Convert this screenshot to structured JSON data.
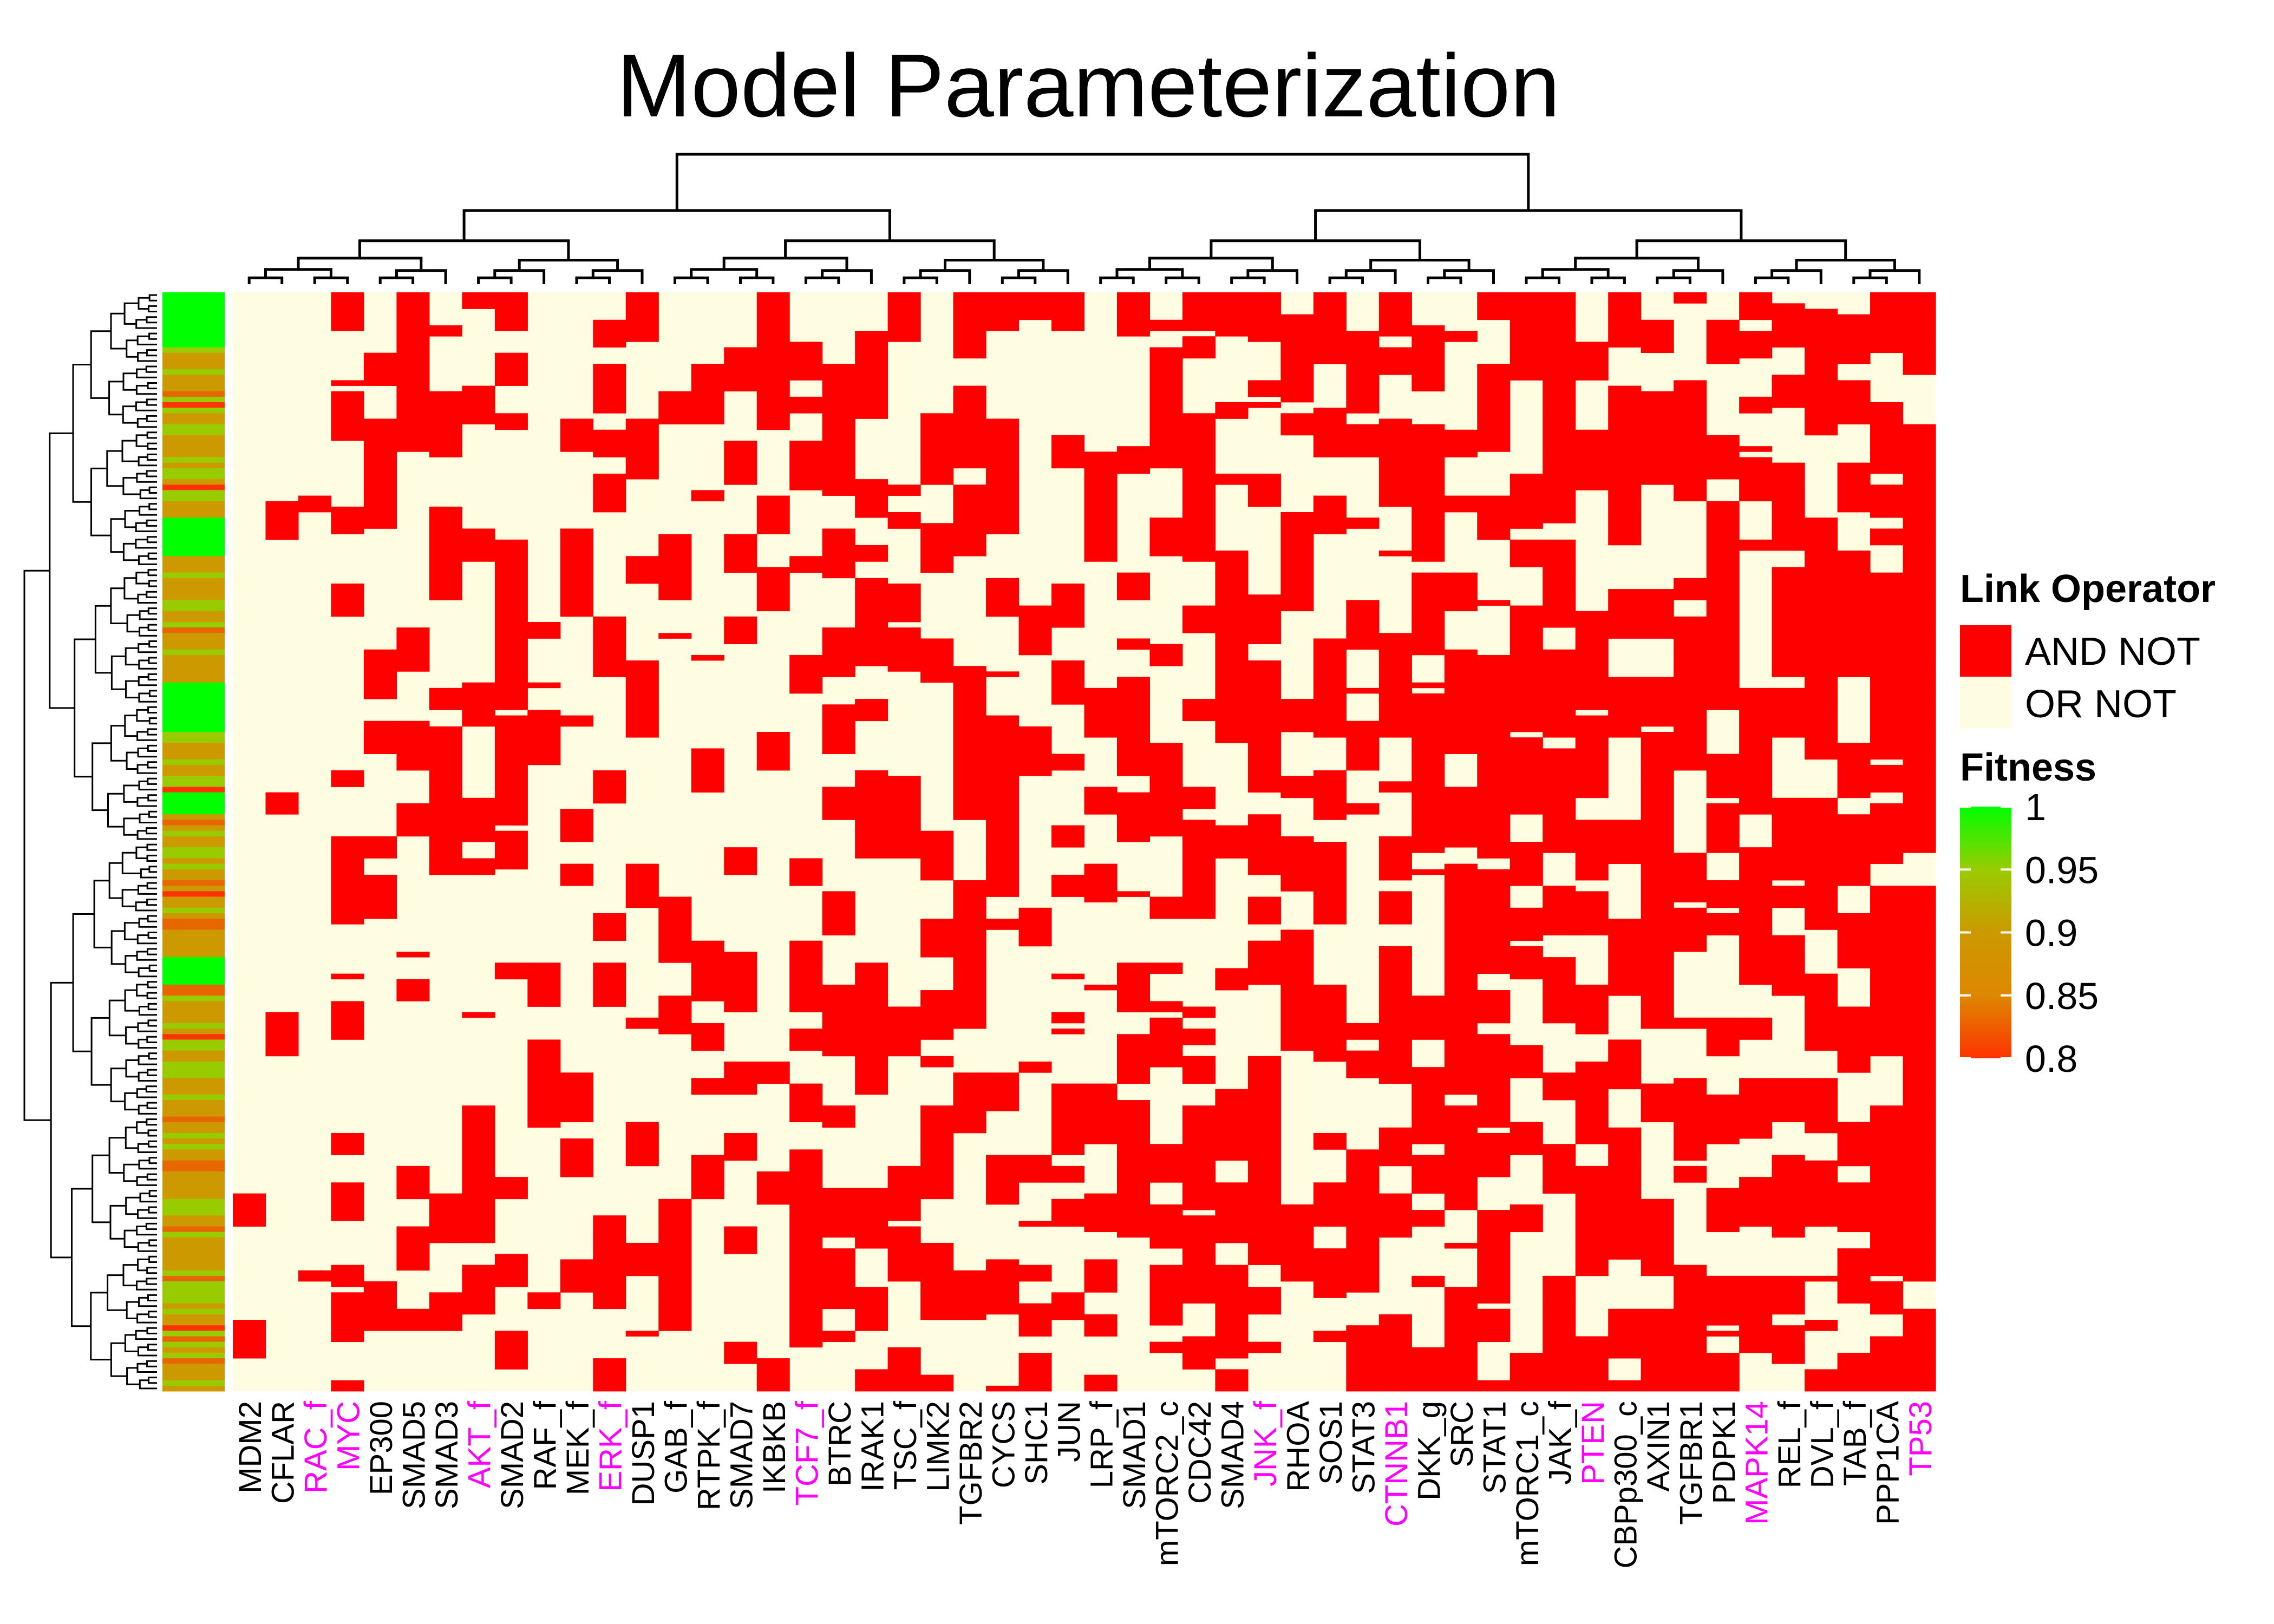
{
  "chart_data": {
    "type": "heatmap",
    "title": "Model Parameterization",
    "columns": [
      "MDM2",
      "CFLAR",
      "RAC_f",
      "MYC",
      "EP300",
      "SMAD5",
      "SMAD3",
      "AKT_f",
      "SMAD2",
      "RAF_f",
      "MEK_f",
      "ERK_f",
      "DUSP1",
      "GAB_f",
      "RTPK_f",
      "SMAD7",
      "IKBKB",
      "TCF7_f",
      "BTRC",
      "IRAK1",
      "TSC_f",
      "LIMK2",
      "TGFBR2",
      "CYCS",
      "SHC1",
      "JUN",
      "LRP_f",
      "SMAD1",
      "mTORC2_c",
      "CDC42",
      "SMAD4",
      "JNK_f",
      "RHOA",
      "SOS1",
      "STAT3",
      "CTNNB1",
      "DKK_g",
      "SRC",
      "STAT1",
      "mTORC1_c",
      "JAK_f",
      "PTEN",
      "CBPp300_c",
      "AXIN1",
      "TGFBR1",
      "PDPK1",
      "MAPK14",
      "REL_f",
      "DVL_f",
      "TAB_f",
      "PPP1CA",
      "TP53"
    ],
    "highlighted_columns": [
      "RAC_f",
      "MYC",
      "AKT_f",
      "ERK_f",
      "TCF7_f",
      "JNK_f",
      "CTNNB1",
      "PTEN",
      "MAPK14",
      "TP53"
    ],
    "column_and_not_probability": [
      0.02,
      0.05,
      0.12,
      0.3,
      0.3,
      0.32,
      0.35,
      0.35,
      0.33,
      0.3,
      0.3,
      0.28,
      0.3,
      0.3,
      0.35,
      0.35,
      0.38,
      0.42,
      0.45,
      0.45,
      0.45,
      0.45,
      0.5,
      0.5,
      0.2,
      0.45,
      0.45,
      0.45,
      0.5,
      0.5,
      0.5,
      0.55,
      0.5,
      0.5,
      0.5,
      0.55,
      0.5,
      0.55,
      0.55,
      0.6,
      0.6,
      0.55,
      0.55,
      0.55,
      0.6,
      0.6,
      0.65,
      0.6,
      0.62,
      0.65,
      0.8,
      0.93
    ],
    "row_count": 200,
    "fitness_range": [
      0.8,
      1
    ],
    "legend": {
      "link_operator": {
        "title": "Link Operator",
        "items": [
          {
            "label": "AND NOT",
            "color": "#ff0000"
          },
          {
            "label": "OR NOT",
            "color": "#fffde1"
          }
        ]
      },
      "fitness": {
        "title": "Fitness",
        "ticks": [
          "1",
          "0.95",
          "0.9",
          "0.85",
          "0.8"
        ],
        "tick_values": [
          1,
          0.95,
          0.9,
          0.85,
          0.8
        ],
        "colors": [
          "#00ff00",
          "#99cc00",
          "#cc9900",
          "#e86600",
          "#ff3300"
        ]
      }
    }
  },
  "colors": {
    "highlight_label": "#ff00ff",
    "label": "#000000",
    "and_not": "#ff0000",
    "or_not": "#fffde1",
    "dendrogram": "#000000"
  }
}
